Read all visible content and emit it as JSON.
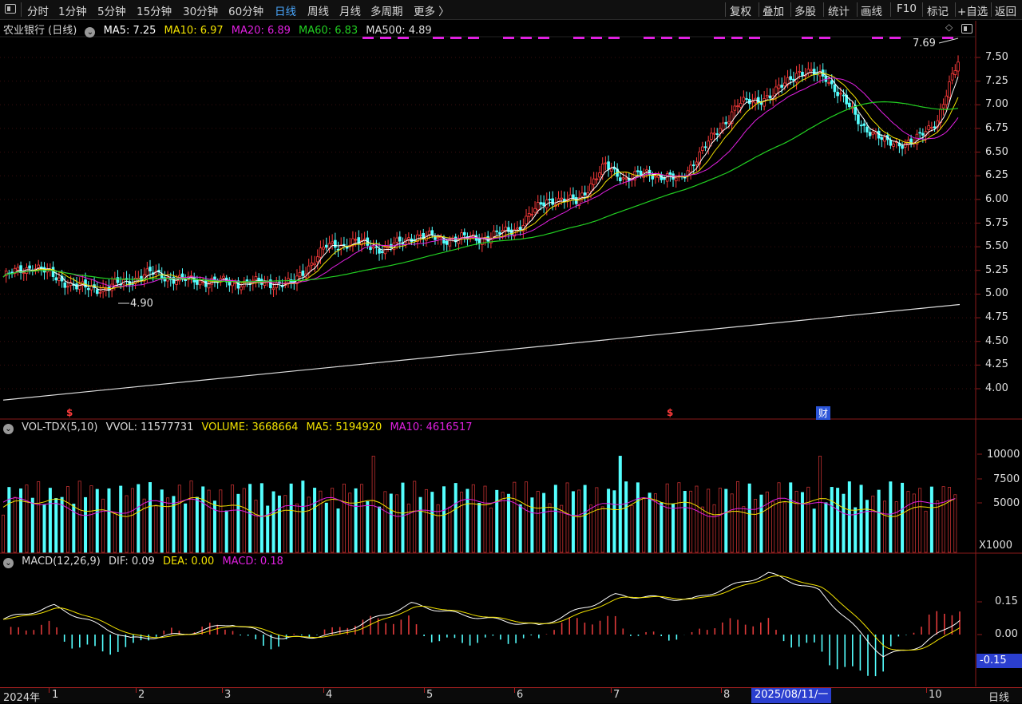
{
  "toolbar": {
    "periods": [
      "分时",
      "1分钟",
      "5分钟",
      "15分钟",
      "30分钟",
      "60分钟",
      "日线",
      "周线",
      "月线",
      "多周期",
      "更多 〉"
    ],
    "active_period": "日线",
    "tools": [
      "复权",
      "叠加",
      "多股",
      "统计",
      "画线",
      "F10",
      "标记",
      "+自选",
      "返回"
    ]
  },
  "price_panel": {
    "title": "农业银行 (日线)",
    "ma": [
      {
        "label": "MA5: 7.25",
        "color": "#ffffff"
      },
      {
        "label": "MA10: 6.97",
        "color": "#f2e200"
      },
      {
        "label": "MA20: 6.89",
        "color": "#e020e0"
      },
      {
        "label": "MA60: 6.83",
        "color": "#22d022"
      },
      {
        "label": "MA500: 4.89",
        "color": "#dddddd"
      }
    ],
    "y_ticks": [
      "7.50",
      "7.25",
      "7.00",
      "6.75",
      "6.50",
      "6.25",
      "6.00",
      "5.75",
      "5.50",
      "5.25",
      "5.00",
      "4.75",
      "4.50",
      "4.25",
      "4.00"
    ],
    "high_label": "7.69",
    "low_label": "4.90",
    "signals": [
      "$",
      "$"
    ],
    "event_badge": "财"
  },
  "volume_panel": {
    "title": "VOL-TDX(5,10)",
    "values": [
      {
        "label": "VVOL: 11577731",
        "color": "#dddddd"
      },
      {
        "label": "VOLUME: 3668664",
        "color": "#f2e200"
      },
      {
        "label": "MA5: 5194920",
        "color": "#f2e200"
      },
      {
        "label": "MA10: 4616517",
        "color": "#e020e0"
      }
    ],
    "y_ticks": [
      "10000",
      "7500",
      "5000"
    ],
    "unit": "X1000"
  },
  "macd_panel": {
    "title": "MACD(12,26,9)",
    "values": [
      {
        "label": "DIF: 0.09",
        "color": "#dddddd"
      },
      {
        "label": "DEA: 0.00",
        "color": "#f2e200"
      },
      {
        "label": "MACD: 0.18",
        "color": "#e020e0"
      }
    ],
    "y_ticks": [
      "0.15",
      "0.00"
    ],
    "current": "-0.15"
  },
  "timeline": {
    "year": "2024年",
    "months": [
      "1",
      "2",
      "3",
      "4",
      "5",
      "6",
      "7",
      "8",
      "10"
    ],
    "cursor_date": "2025/08/11/一",
    "period_label": "日线"
  }
}
